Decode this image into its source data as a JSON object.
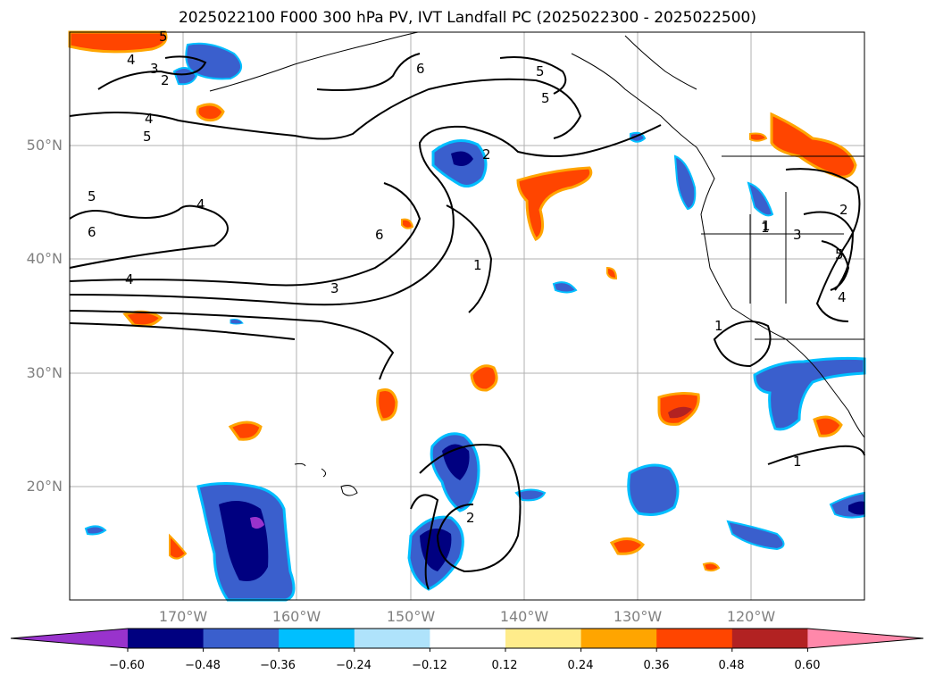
{
  "title": "2025022100 F000 300 hPa PV, IVT Landfall PC (2025022300 - 2025022500)",
  "map": {
    "lat_labels": [
      "50°N",
      "40°N",
      "30°N",
      "20°N"
    ],
    "lon_labels": [
      "170°W",
      "160°W",
      "150°W",
      "140°W",
      "130°W",
      "120°W"
    ],
    "lat_lines": [
      50,
      40,
      30,
      20
    ],
    "lon_lines": [
      -170,
      -160,
      -150,
      -140,
      -130,
      -120
    ],
    "extent": {
      "lon_min": -180,
      "lon_max": -110,
      "lat_min": 10,
      "lat_max": 60
    },
    "contour_labels": [
      "5",
      "4",
      "3",
      "2",
      "6",
      "5",
      "5",
      "4",
      "5",
      "5",
      "4",
      "6",
      "3",
      "2",
      "1",
      "1",
      "3",
      "5",
      "4",
      "1",
      "2",
      "1",
      "2",
      "6",
      "4",
      "1"
    ]
  },
  "colorbar": {
    "ticks": [
      "−0.60",
      "−0.48",
      "−0.36",
      "−0.24",
      "−0.12",
      "0.12",
      "0.24",
      "0.36",
      "0.48",
      "0.60"
    ],
    "colors": [
      "#9933cc",
      "#000080",
      "#3a5fcd",
      "#00bfff",
      "#afe3fb",
      "#ffffff",
      "#ffec8b",
      "#ffa500",
      "#ff4500",
      "#b22222",
      "#ff88aa"
    ]
  }
}
